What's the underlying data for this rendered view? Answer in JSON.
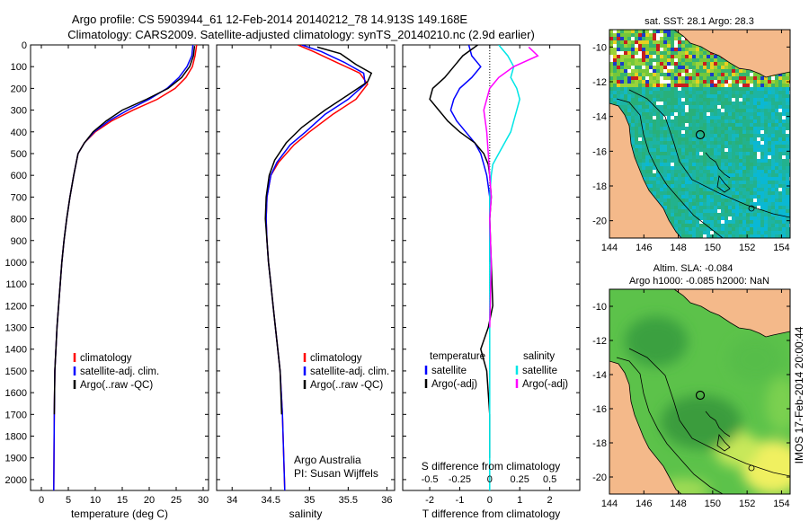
{
  "title": {
    "line1": "Argo profile: CS 5903944_61 12-Feb-2014 20140212_78 14.913S 149.168E",
    "line2": "Climatology: CARS2009. Satellite-adjusted climatology: synTS_20140210.nc (2.9d earlier)"
  },
  "side_text": "IMOS 17-Feb-2014 20:00:44",
  "credits": {
    "line1": "Argo Australia",
    "line2": "PI: Susan Wijffels"
  },
  "colors": {
    "climatology": "#ff0000",
    "satellite": "#0000ff",
    "argo": "#000000",
    "sal_sat": "#00e6e6",
    "sal_argo": "#ff00ff",
    "land": "#f4b98a"
  },
  "chart_data": [
    {
      "name": "temperature",
      "type": "line",
      "xlabel": "temperature (deg C)",
      "xlim": [
        -2,
        31
      ],
      "ylim": [
        2050,
        0
      ],
      "xticks": [
        "0",
        "5",
        "10",
        "15",
        "20",
        "25",
        "30"
      ],
      "yticks": [
        "0",
        "100",
        "200",
        "300",
        "400",
        "500",
        "600",
        "700",
        "800",
        "900",
        "1000",
        "1100",
        "1200",
        "1300",
        "1400",
        "1500",
        "1600",
        "1700",
        "1800",
        "1900",
        "2000"
      ],
      "legend": [
        "climatology",
        "satellite-adj. clim.",
        "Argo(..raw -QC)"
      ],
      "series": [
        {
          "name": "climatology",
          "color": "#ff0000",
          "x": [
            28.8,
            28.5,
            28.0,
            26.8,
            24.8,
            21.5,
            17.0,
            13.0,
            10.0,
            8.0,
            6.8,
            6.0,
            5.3,
            4.7,
            4.2,
            3.8,
            3.5,
            3.2,
            2.9,
            2.7,
            2.5,
            2.4,
            2.3
          ],
          "y": [
            0,
            50,
            100,
            150,
            200,
            250,
            300,
            350,
            400,
            450,
            500,
            600,
            700,
            800,
            900,
            1000,
            1100,
            1200,
            1300,
            1400,
            1500,
            1700,
            2050
          ]
        },
        {
          "name": "satellite-adj. clim.",
          "color": "#0000ff",
          "x": [
            28.1,
            27.9,
            27.0,
            25.5,
            23.3,
            20.0,
            16.0,
            12.5,
            9.8,
            8.0,
            6.8,
            6.0,
            5.3,
            4.7,
            4.2,
            3.8,
            3.5,
            3.2,
            2.9,
            2.7,
            2.5,
            2.4,
            2.3
          ],
          "y": [
            0,
            50,
            100,
            150,
            200,
            250,
            300,
            350,
            400,
            450,
            500,
            600,
            700,
            800,
            900,
            1000,
            1100,
            1200,
            1300,
            1400,
            1500,
            1700,
            2050
          ]
        },
        {
          "name": "Argo(..raw -QC)",
          "color": "#000000",
          "x": [
            28.4,
            28.2,
            27.5,
            26.0,
            23.5,
            19.5,
            15.0,
            12.0,
            9.6,
            8.0,
            6.8,
            6.0,
            5.3,
            4.7,
            4.2,
            3.8,
            3.5,
            3.2,
            2.9,
            2.7,
            2.5,
            2.4
          ],
          "y": [
            5,
            50,
            100,
            150,
            200,
            250,
            300,
            350,
            400,
            450,
            500,
            600,
            700,
            800,
            900,
            1000,
            1100,
            1200,
            1300,
            1400,
            1500,
            1700
          ]
        }
      ]
    },
    {
      "name": "salinity",
      "type": "line",
      "xlabel": "salinity",
      "xlim": [
        33.8,
        36.1
      ],
      "ylim": [
        2050,
        0
      ],
      "xticks": [
        "34",
        "34.5",
        "35",
        "35.5",
        "36"
      ],
      "legend": [
        "climatology",
        "satellite-adj. clim.",
        "Argo(..raw -QC)"
      ],
      "series": [
        {
          "name": "climatology",
          "color": "#ff0000",
          "x": [
            34.85,
            35.05,
            35.35,
            35.65,
            35.75,
            35.6,
            35.3,
            35.0,
            34.8,
            34.6,
            34.5,
            34.45,
            34.44,
            34.45,
            34.47,
            34.5,
            34.53,
            34.56,
            34.59,
            34.62,
            34.65,
            34.68
          ],
          "y": [
            0,
            30,
            80,
            130,
            180,
            250,
            320,
            400,
            460,
            540,
            600,
            700,
            800,
            900,
            1000,
            1100,
            1200,
            1300,
            1400,
            1500,
            1700,
            2050
          ]
        },
        {
          "name": "satellite-adj. clim.",
          "color": "#0000ff",
          "x": [
            34.9,
            35.15,
            35.45,
            35.7,
            35.72,
            35.5,
            35.2,
            34.95,
            34.75,
            34.58,
            34.5,
            34.45,
            34.44,
            34.45,
            34.47,
            34.5,
            34.53,
            34.56,
            34.59,
            34.62,
            34.65,
            34.68
          ],
          "y": [
            0,
            30,
            80,
            130,
            180,
            250,
            320,
            400,
            460,
            540,
            600,
            700,
            800,
            900,
            1000,
            1100,
            1200,
            1300,
            1400,
            1500,
            1700,
            2050
          ]
        },
        {
          "name": "Argo(..raw -QC)",
          "color": "#000000",
          "x": [
            35.1,
            35.4,
            35.6,
            35.8,
            35.75,
            35.5,
            35.2,
            34.9,
            34.7,
            34.55,
            34.48,
            34.44,
            34.43,
            34.45,
            34.47,
            34.5,
            34.53,
            34.56,
            34.59,
            34.62,
            34.64
          ],
          "y": [
            10,
            40,
            90,
            130,
            170,
            230,
            300,
            380,
            450,
            530,
            600,
            700,
            800,
            900,
            1000,
            1100,
            1200,
            1300,
            1400,
            1500,
            1700
          ]
        }
      ]
    },
    {
      "name": "differences",
      "type": "line",
      "xlabel": "T difference from climatology",
      "xlabel_top": "S difference from climatology",
      "xlim": [
        -2.9,
        3.0
      ],
      "ylim": [
        2050,
        0
      ],
      "xticks": [
        "-2",
        "-1",
        "0",
        "1",
        "2"
      ],
      "xticks_salinity": [
        "-0.5",
        "-0.25",
        "0",
        "0.25",
        "0.5"
      ],
      "legend_titles": [
        "temperature",
        "salinity"
      ],
      "legend": [
        "satellite",
        "Argo(-adj)",
        "satellite",
        "Argo(-adj)"
      ],
      "series": [
        {
          "name": "temperature satellite",
          "color": "#0000ff",
          "x": [
            -0.7,
            -0.6,
            -0.3,
            -0.6,
            -1.0,
            -1.2,
            -1.3,
            -1.1,
            -0.8,
            -0.5,
            -0.3,
            -0.2,
            -0.1,
            -0.05,
            0.0,
            0.0,
            0.0
          ],
          "y": [
            0,
            50,
            100,
            150,
            200,
            250,
            300,
            350,
            400,
            450,
            500,
            550,
            600,
            650,
            700,
            800,
            1000
          ]
        },
        {
          "name": "temperature Argo(-adj)",
          "color": "#000000",
          "x": [
            -0.4,
            -0.9,
            -1.2,
            -1.5,
            -1.9,
            -2.0,
            -1.7,
            -1.4,
            -1.0,
            -0.5,
            -0.2,
            -0.05,
            0.0,
            0.05,
            0.0,
            0.05,
            0.1,
            -0.05,
            -0.3,
            -0.1,
            0.0,
            0.0
          ],
          "y": [
            0,
            50,
            100,
            150,
            200,
            250,
            300,
            350,
            400,
            450,
            500,
            550,
            600,
            700,
            800,
            1000,
            1200,
            1300,
            1400,
            1500,
            1700,
            1900
          ]
        },
        {
          "name": "salinity satellite",
          "color": "#00e6e6",
          "x": [
            0.3,
            0.6,
            0.8,
            0.7,
            0.9,
            1.0,
            0.9,
            0.8,
            0.7,
            0.5,
            0.3,
            0.1,
            0.05,
            0.0,
            0.0,
            0.0
          ],
          "y": [
            0,
            50,
            100,
            150,
            200,
            250,
            300,
            350,
            400,
            450,
            500,
            550,
            600,
            700,
            800,
            2050
          ]
        },
        {
          "name": "salinity Argo(-adj)",
          "color": "#ff00ff",
          "x": [
            1.3,
            1.6,
            0.8,
            0.3,
            0.0,
            -0.2,
            -0.1,
            -0.05,
            0.0,
            0.05,
            0.0,
            0.05,
            0.0
          ],
          "y": [
            10,
            50,
            100,
            150,
            200,
            300,
            400,
            500,
            600,
            700,
            800,
            1000,
            1300
          ]
        }
      ]
    },
    {
      "name": "sst-map",
      "type": "heatmap",
      "title": "sat. SST: 28.1  Argo: 28.3",
      "xlim": [
        144,
        154.5
      ],
      "ylim": [
        -21,
        -9
      ],
      "xticks": [
        "144",
        "146",
        "148",
        "150",
        "152",
        "154"
      ],
      "yticks": [
        "-10",
        "-12",
        "-14",
        "-16",
        "-18",
        "-20"
      ],
      "argo_position": [
        149.168,
        -14.913
      ]
    },
    {
      "name": "sla-map",
      "type": "heatmap",
      "title_line1": "Altim. SLA: -0.084",
      "title_line2": "Argo h1000: -0.085 h2000: NaN",
      "xlim": [
        144,
        154.5
      ],
      "ylim": [
        -21,
        -9
      ],
      "xticks": [
        "144",
        "146",
        "148",
        "150",
        "152",
        "154"
      ],
      "yticks": [
        "-10",
        "-12",
        "-14",
        "-16",
        "-18",
        "-20"
      ],
      "argo_position": [
        149.168,
        -14.913
      ]
    }
  ]
}
